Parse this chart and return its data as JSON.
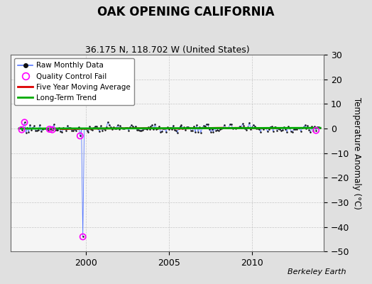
{
  "title": "OAK OPENING CALIFORNIA",
  "subtitle": "36.175 N, 118.702 W (United States)",
  "ylabel": "Temperature Anomaly (°C)",
  "attribution": "Berkeley Earth",
  "xlim": [
    1995.5,
    2014.3
  ],
  "ylim": [
    -50,
    30
  ],
  "yticks": [
    -50,
    -40,
    -30,
    -20,
    -10,
    0,
    10,
    20,
    30
  ],
  "xticks": [
    2000,
    2005,
    2010
  ],
  "bg_color": "#e0e0e0",
  "plot_bg_color": "#f5f5f5",
  "raw_line_color": "#5577ff",
  "raw_dot_color": "#111111",
  "moving_avg_color": "#dd0000",
  "trend_color": "#00aa00",
  "qc_fail_color": "#ff00ff",
  "title_fontsize": 12,
  "subtitle_fontsize": 9,
  "tick_fontsize": 9,
  "legend_fontsize": 7.5,
  "ylabel_fontsize": 8.5,
  "attribution_fontsize": 8
}
